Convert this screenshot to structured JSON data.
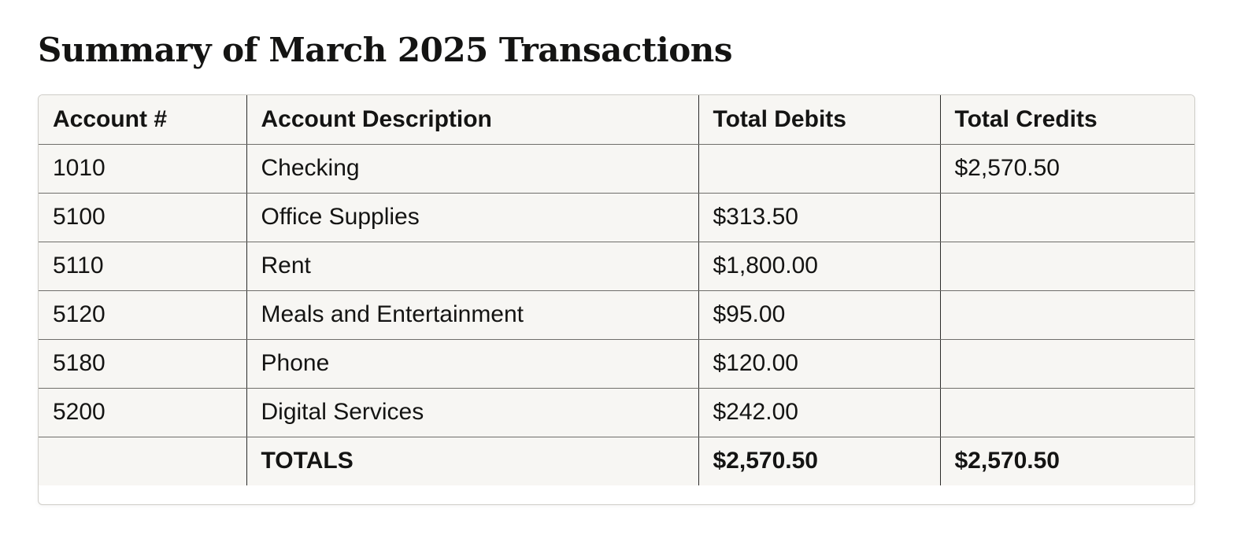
{
  "title": "Summary of March 2025 Transactions",
  "table": {
    "headers": [
      "Account #",
      "Account Description",
      "Total Debits",
      "Total Credits"
    ],
    "rows": [
      {
        "account": "1010",
        "description": "Checking",
        "debit": "",
        "credit": "$2,570.50"
      },
      {
        "account": "5100",
        "description": "Office Supplies",
        "debit": "$313.50",
        "credit": ""
      },
      {
        "account": "5110",
        "description": "Rent",
        "debit": "$1,800.00",
        "credit": ""
      },
      {
        "account": "5120",
        "description": "Meals and Entertainment",
        "debit": "$95.00",
        "credit": ""
      },
      {
        "account": "5180",
        "description": "Phone",
        "debit": "$120.00",
        "credit": ""
      },
      {
        "account": "5200",
        "description": "Digital Services",
        "debit": "$242.00",
        "credit": ""
      }
    ],
    "totals": {
      "account": "",
      "label": "TOTALS",
      "debit": "$2,570.50",
      "credit": "$2,570.50"
    }
  }
}
